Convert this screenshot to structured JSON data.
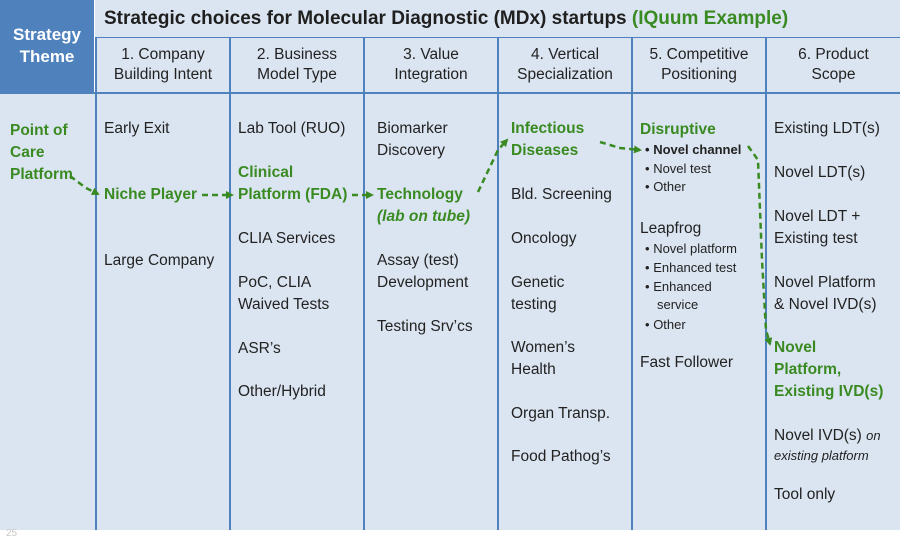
{
  "title": {
    "main": "Strategic choices for Molecular Diagnostic (MDx) startups ",
    "highlight": "(IQuum Example)"
  },
  "theme_header": {
    "line1": "Strategy",
    "line2": "Theme"
  },
  "columns": [
    {
      "line1": "1. Company",
      "line2": "Building Intent"
    },
    {
      "line1": "2. Business",
      "line2": "Model Type"
    },
    {
      "line1": "3. Value",
      "line2": "Integration"
    },
    {
      "line1": "4. Vertical",
      "line2": "Specialization"
    },
    {
      "line1": "5. Competitive",
      "line2": "Positioning"
    },
    {
      "line1": "6. Product",
      "line2": "Scope"
    }
  ],
  "theme": {
    "line1": "Point of",
    "line2": "Care",
    "line3": "Platform"
  },
  "col1": {
    "early_exit": "Early Exit",
    "niche": "Niche Player",
    "large": "Large Company"
  },
  "col2": {
    "lab_tool": "Lab Tool (RUO)",
    "clinical_1": "Clinical",
    "clinical_2": "Platform (FDA)",
    "clia": "CLIA Services",
    "poc_1": "PoC, CLIA",
    "poc_2": "Waived Tests",
    "asr": "ASR’s",
    "other": "Other/Hybrid"
  },
  "col3": {
    "bio_1": "Biomarker",
    "bio_2": "Discovery",
    "tech_1": "Technology",
    "tech_2": "(lab on tube)",
    "assay_1": "Assay (test)",
    "assay_2": "Development",
    "testing": "Testing Srv’cs"
  },
  "col4": {
    "inf_1": "Infectious",
    "inf_2": "Diseases",
    "bld": "Bld. Screening",
    "onc": "Oncology",
    "gen_1": "Genetic",
    "gen_2": "testing",
    "women_1": "Women’s",
    "women_2": "Health",
    "organ": "Organ Transp.",
    "food": "Food Pathog’s"
  },
  "col5": {
    "disruptive": "Disruptive",
    "d1": "Novel channel",
    "d2": "Novel test",
    "d3": "Other",
    "leapfrog": "Leapfrog",
    "l1": "Novel platform",
    "l2": "Enhanced test",
    "l3a": "Enhanced",
    "l3b": "service",
    "l4": "Other",
    "fast": "Fast Follower"
  },
  "col6": {
    "existing": "Existing LDT(s)",
    "novel_ldt": "Novel LDT(s)",
    "novel_ldt_plus_1": "Novel LDT +",
    "novel_ldt_plus_2": "Existing test",
    "novel_platform_1": "Novel Platform",
    "novel_platform_2": "& Novel IVD(s)",
    "novel_existing_1": "Novel",
    "novel_existing_2": "Platform,",
    "novel_existing_3": "Existing IVD(s)",
    "novel_ivd": "Novel IVD(s)",
    "on": "on",
    "existing_platform": "existing platform",
    "tool": "Tool only"
  },
  "bullet": "•",
  "page_number": "25",
  "colors": {
    "header_blue": "#4f81bd",
    "cell_fill": "#dbe5f1",
    "highlight_green": "#3a8a22"
  }
}
